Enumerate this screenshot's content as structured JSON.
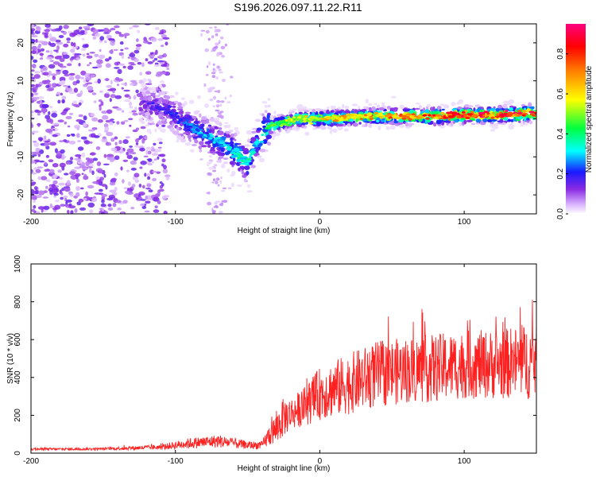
{
  "title": "S196.2026.097.11.22.R11",
  "chart_data": [
    {
      "type": "heatmap",
      "name": "spectrogram",
      "xlabel": "Height of straight line (km)",
      "ylabel": "Frequency (Hz)",
      "xlim": [
        -200,
        150
      ],
      "ylim": [
        -25,
        25
      ],
      "xticks": [
        -200,
        -100,
        0,
        100
      ],
      "yticks": [
        -20,
        -10,
        0,
        10,
        20
      ],
      "colorbar": {
        "label": "Normalized spectral amplitude",
        "range": [
          0.0,
          0.95
        ],
        "ticks": [
          0.0,
          0.2,
          0.4,
          0.6,
          0.8
        ],
        "tick_labels": [
          "0.0",
          "0.2",
          "0.4",
          "0.6",
          "0.8"
        ]
      },
      "ridge": {
        "x": [
          -120,
          -105,
          -90,
          -75,
          -65,
          -55,
          -50,
          -45,
          -40,
          -35,
          -25,
          -15,
          0,
          25,
          50,
          75,
          100,
          125,
          150
        ],
        "y": [
          4,
          2,
          -2,
          -5,
          -7,
          -10,
          -12,
          -7,
          -4,
          -2,
          -1,
          0,
          0,
          0.5,
          0.8,
          0.6,
          1,
          1,
          1.5
        ],
        "amplitude": [
          0.15,
          0.2,
          0.25,
          0.3,
          0.3,
          0.35,
          0.35,
          0.3,
          0.35,
          0.45,
          0.5,
          0.55,
          0.6,
          0.65,
          0.7,
          0.75,
          0.85,
          0.85,
          0.8
        ]
      }
    },
    {
      "type": "line",
      "name": "snr",
      "xlabel": "Height of straight line (km)",
      "ylabel": "SNR (10 * v/v)",
      "xlim": [
        -200,
        150
      ],
      "ylim": [
        0,
        1000
      ],
      "xticks": [
        -200,
        -100,
        0,
        100
      ],
      "yticks": [
        0,
        200,
        400,
        600,
        800,
        1000
      ],
      "series_color": "#ff2020",
      "envelope": {
        "x": [
          -200,
          -150,
          -110,
          -90,
          -70,
          -50,
          -40,
          -35,
          -30,
          -25,
          -20,
          -10,
          0,
          20,
          40,
          60,
          80,
          100,
          120,
          140,
          150
        ],
        "mean": [
          20,
          22,
          30,
          50,
          60,
          40,
          40,
          90,
          120,
          180,
          200,
          240,
          300,
          350,
          400,
          420,
          430,
          450,
          450,
          460,
          470
        ],
        "spread": [
          10,
          10,
          20,
          40,
          50,
          30,
          30,
          80,
          120,
          150,
          120,
          150,
          200,
          230,
          250,
          250,
          260,
          260,
          260,
          280,
          300
        ]
      }
    }
  ]
}
